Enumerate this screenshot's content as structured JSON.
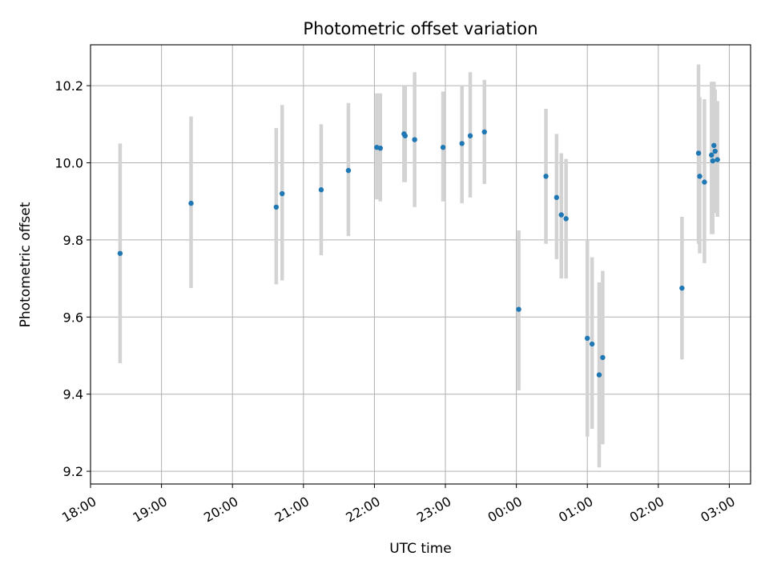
{
  "chart_data": {
    "type": "scatter",
    "title": "Photometric offset variation",
    "xlabel": "UTC time",
    "ylabel": "Photometric offset",
    "x_ticks": [
      "18:00",
      "19:00",
      "20:00",
      "21:00",
      "22:00",
      "23:00",
      "00:00",
      "01:00",
      "02:00",
      "03:00"
    ],
    "y_ticks": [
      "9.2",
      "9.4",
      "9.6",
      "9.8",
      "10.0",
      "10.2"
    ],
    "y_tick_values": [
      9.2,
      9.4,
      9.6,
      9.8,
      10.0,
      10.2
    ],
    "xlim": [
      "18:00",
      "03:18"
    ],
    "ylim": [
      9.167,
      10.306
    ],
    "grid": true,
    "colors": {
      "points": "#1f77b4",
      "error_bars": "#d3d3d3",
      "grid": "#b0b0b0"
    },
    "points": [
      {
        "t": "18:25",
        "y": 9.765,
        "lo": 9.48,
        "hi": 10.05
      },
      {
        "t": "19:25",
        "y": 9.895,
        "lo": 9.675,
        "hi": 10.12
      },
      {
        "t": "20:37",
        "y": 9.885,
        "lo": 9.685,
        "hi": 10.09
      },
      {
        "t": "20:42",
        "y": 9.92,
        "lo": 9.695,
        "hi": 10.15
      },
      {
        "t": "21:15",
        "y": 9.93,
        "lo": 9.76,
        "hi": 10.1
      },
      {
        "t": "21:38",
        "y": 9.98,
        "lo": 9.81,
        "hi": 10.155
      },
      {
        "t": "22:02",
        "y": 10.04,
        "lo": 9.905,
        "hi": 10.18
      },
      {
        "t": "22:05",
        "y": 10.038,
        "lo": 9.9,
        "hi": 10.18
      },
      {
        "t": "22:25",
        "y": 10.075,
        "lo": 9.95,
        "hi": 10.2
      },
      {
        "t": "22:26",
        "y": 10.07,
        "lo": 9.95,
        "hi": 10.2
      },
      {
        "t": "22:34",
        "y": 10.06,
        "lo": 9.885,
        "hi": 10.235
      },
      {
        "t": "22:58",
        "y": 10.04,
        "lo": 9.9,
        "hi": 10.185
      },
      {
        "t": "23:14",
        "y": 10.05,
        "lo": 9.895,
        "hi": 10.2
      },
      {
        "t": "23:21",
        "y": 10.07,
        "lo": 9.91,
        "hi": 10.235
      },
      {
        "t": "23:33",
        "y": 10.08,
        "lo": 9.945,
        "hi": 10.215
      },
      {
        "t": "00:02",
        "y": 9.62,
        "lo": 9.41,
        "hi": 9.825
      },
      {
        "t": "00:25",
        "y": 9.965,
        "lo": 9.79,
        "hi": 10.14
      },
      {
        "t": "00:34",
        "y": 9.91,
        "lo": 9.75,
        "hi": 10.075
      },
      {
        "t": "00:38",
        "y": 9.865,
        "lo": 9.7,
        "hi": 10.025
      },
      {
        "t": "00:42",
        "y": 9.855,
        "lo": 9.7,
        "hi": 10.01
      },
      {
        "t": "01:00",
        "y": 9.545,
        "lo": 9.29,
        "hi": 9.8
      },
      {
        "t": "01:04",
        "y": 9.53,
        "lo": 9.31,
        "hi": 9.755
      },
      {
        "t": "01:10",
        "y": 9.45,
        "lo": 9.21,
        "hi": 9.69
      },
      {
        "t": "01:13",
        "y": 9.495,
        "lo": 9.27,
        "hi": 9.72
      },
      {
        "t": "02:20",
        "y": 9.675,
        "lo": 9.49,
        "hi": 9.86
      },
      {
        "t": "02:34",
        "y": 10.025,
        "lo": 9.79,
        "hi": 10.255
      },
      {
        "t": "02:35",
        "y": 9.965,
        "lo": 9.765,
        "hi": 10.17
      },
      {
        "t": "02:39",
        "y": 9.95,
        "lo": 9.74,
        "hi": 10.165
      },
      {
        "t": "02:45",
        "y": 10.02,
        "lo": 9.815,
        "hi": 10.21
      },
      {
        "t": "02:46",
        "y": 10.005,
        "lo": 9.815,
        "hi": 10.21
      },
      {
        "t": "02:47",
        "y": 10.045,
        "lo": 9.88,
        "hi": 10.21
      },
      {
        "t": "02:48",
        "y": 10.03,
        "lo": 9.87,
        "hi": 10.19
      },
      {
        "t": "02:50",
        "y": 10.008,
        "lo": 9.86,
        "hi": 10.16
      }
    ]
  }
}
